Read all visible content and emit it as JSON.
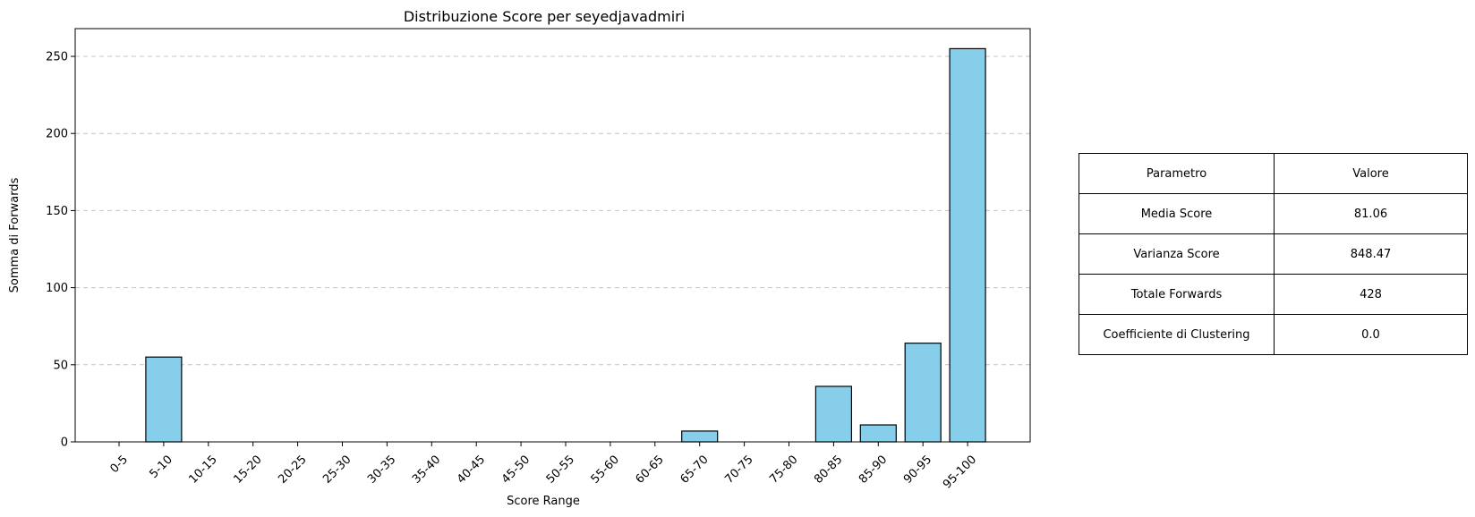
{
  "chart_data": {
    "type": "bar",
    "title": "Distribuzione Score per seyedjavadmiri",
    "xlabel": "Score Range",
    "ylabel": "Somma di Forwards",
    "categories": [
      "0-5",
      "5-10",
      "10-15",
      "15-20",
      "20-25",
      "25-30",
      "30-35",
      "35-40",
      "40-45",
      "45-50",
      "50-55",
      "55-60",
      "60-65",
      "65-70",
      "70-75",
      "75-80",
      "80-85",
      "85-90",
      "90-95",
      "95-100"
    ],
    "values": [
      0,
      55,
      0,
      0,
      0,
      0,
      0,
      0,
      0,
      0,
      0,
      0,
      0,
      7,
      0,
      0,
      36,
      11,
      64,
      255
    ],
    "ylim": [
      0,
      268
    ],
    "yticks": [
      0,
      50,
      100,
      150,
      200,
      250
    ],
    "grid": "y-dashed",
    "bar_color": "#87ceeb",
    "edge_color": "#000000"
  },
  "table": {
    "header": [
      "Parametro",
      "Valore"
    ],
    "rows": [
      [
        "Media Score",
        "81.06"
      ],
      [
        "Varianza Score",
        "848.47"
      ],
      [
        "Totale Forwards",
        "428"
      ],
      [
        "Coefficiente di Clustering",
        "0.0"
      ]
    ]
  }
}
